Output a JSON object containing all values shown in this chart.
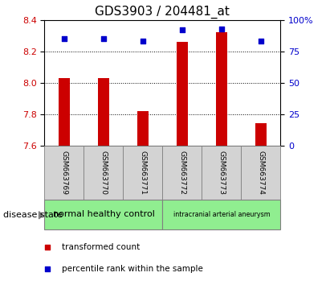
{
  "title": "GDS3903 / 204481_at",
  "samples": [
    "GSM663769",
    "GSM663770",
    "GSM663771",
    "GSM663772",
    "GSM663773",
    "GSM663774"
  ],
  "transformed_count": [
    8.03,
    8.03,
    7.82,
    8.26,
    8.32,
    7.74
  ],
  "percentile_rank": [
    85,
    85,
    83,
    92,
    93,
    83
  ],
  "ylim_left": [
    7.6,
    8.4
  ],
  "ylim_right": [
    0,
    100
  ],
  "yticks_left": [
    7.6,
    7.8,
    8.0,
    8.2,
    8.4
  ],
  "yticks_right": [
    0,
    25,
    50,
    75,
    100
  ],
  "ytick_labels_right": [
    "0",
    "25",
    "50",
    "75",
    "100%"
  ],
  "bar_color": "#cc0000",
  "square_color": "#0000cc",
  "group1_label": "normal healthy control",
  "group2_label": "intracranial arterial aneurysm",
  "group_color": "#90ee90",
  "sample_box_color": "#d3d3d3",
  "disease_state_label": "disease state",
  "legend_bar_label": "transformed count",
  "legend_square_label": "percentile rank within the sample",
  "title_fontsize": 11,
  "tick_fontsize": 8,
  "bar_width": 0.3
}
